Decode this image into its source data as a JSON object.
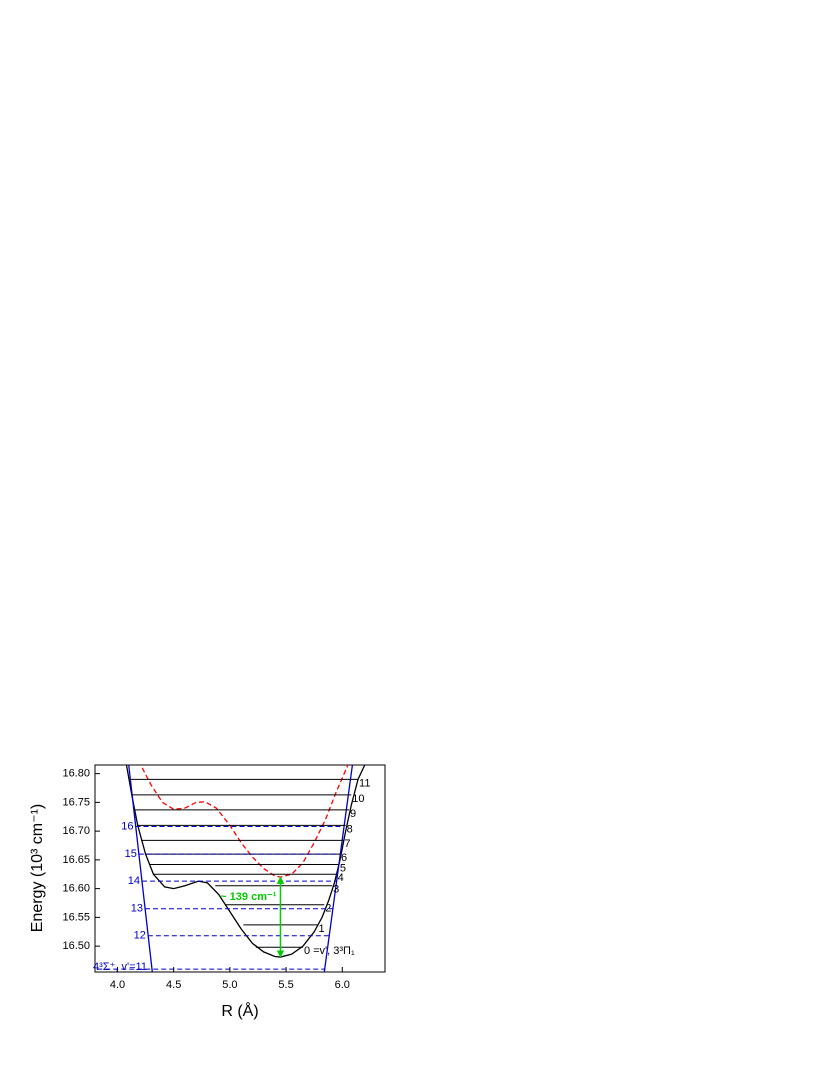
{
  "chart_data": {
    "type": "line",
    "xlabel": "R (Å)",
    "ylabel": "Energy (10³ cm⁻¹)",
    "xlim": [
      3.8,
      6.38
    ],
    "ylim": [
      16.455,
      16.815
    ],
    "xticks": [
      {
        "value": 4,
        "label": "4.0"
      },
      4.5,
      {
        "value": 5,
        "label": "5.0"
      },
      5.5,
      {
        "value": 6,
        "label": "6.0"
      }
    ],
    "yticks": [
      {
        "value": 16.5,
        "label": "16.50"
      },
      16.55,
      {
        "value": 16.6,
        "label": "16.60"
      },
      16.65,
      {
        "value": 16.7,
        "label": "16.70"
      },
      16.75,
      {
        "value": 16.8,
        "label": "16.80"
      }
    ],
    "series": [
      {
        "color": "#000000",
        "dash": "solid",
        "x": [
          4.08,
          4.13,
          4.18,
          4.25,
          4.32,
          4.42,
          4.5,
          4.6,
          4.72,
          4.8,
          4.9,
          5.0,
          5.1,
          5.2,
          5.3,
          5.4,
          5.45,
          5.55,
          5.65,
          5.75,
          5.82,
          5.88,
          5.93,
          5.98,
          6.03,
          6.08,
          6.14,
          6.2
        ],
        "values": [
          16.815,
          16.76,
          16.71,
          16.66,
          16.625,
          16.603,
          16.6,
          16.605,
          16.613,
          16.61,
          16.59,
          16.56,
          16.53,
          16.505,
          16.49,
          16.482,
          16.481,
          16.486,
          16.5,
          16.525,
          16.55,
          16.58,
          16.61,
          16.65,
          16.7,
          16.745,
          16.79,
          16.815
        ]
      },
      {
        "color": "#ff0000",
        "dash": "dashed",
        "x": [
          4.22,
          4.3,
          4.4,
          4.5,
          4.6,
          4.7,
          4.78,
          4.88,
          5.0,
          5.1,
          5.2,
          5.3,
          5.4,
          5.45,
          5.55,
          5.65,
          5.75,
          5.85,
          5.95,
          6.05
        ],
        "values": [
          16.81,
          16.78,
          16.75,
          16.738,
          16.74,
          16.75,
          16.751,
          16.74,
          16.71,
          16.68,
          16.655,
          16.635,
          16.622,
          16.62,
          16.625,
          16.645,
          16.68,
          16.72,
          16.77,
          16.815
        ]
      },
      {
        "color": "#0000cc",
        "dash": "solid",
        "x": [
          4.1,
          4.31
        ],
        "values": [
          16.815,
          16.455
        ]
      },
      {
        "color": "#0000cc",
        "dash": "solid",
        "x": [
          5.84,
          6.09
        ],
        "values": [
          16.455,
          16.815
        ]
      }
    ],
    "levels": [
      {
        "label": "0 =v', 3³Π₁",
        "value": 16.498,
        "xrange": [
          5.23,
          5.65
        ],
        "color": "#000000",
        "dash": "solid"
      },
      {
        "label": "1",
        "value": 16.537,
        "xrange": [
          5.12,
          5.78
        ],
        "color": "#000000",
        "dash": "solid"
      },
      {
        "label": "2",
        "value": 16.572,
        "xrange": [
          4.96,
          5.84
        ],
        "color": "#000000",
        "dash": "solid"
      },
      {
        "label": "3",
        "value": 16.605,
        "xrange": [
          4.87,
          5.91
        ],
        "color": "#000000",
        "dash": "solid"
      },
      {
        "label": "4",
        "value": 16.625,
        "xrange": [
          4.32,
          5.95
        ],
        "color": "#000000",
        "dash": "solid"
      },
      {
        "label": "5",
        "value": 16.642,
        "xrange": [
          4.28,
          5.97
        ],
        "color": "#000000",
        "dash": "solid"
      },
      {
        "label": "6",
        "value": 16.66,
        "xrange": [
          4.25,
          5.98
        ],
        "color": "#000000",
        "dash": "solid"
      },
      {
        "label": "7",
        "value": 16.684,
        "xrange": [
          4.21,
          6.01
        ],
        "color": "#000000",
        "dash": "solid"
      },
      {
        "label": "8",
        "value": 16.71,
        "xrange": [
          4.18,
          6.03
        ],
        "color": "#000000",
        "dash": "solid"
      },
      {
        "label": "9",
        "value": 16.737,
        "xrange": [
          4.155,
          6.06
        ],
        "color": "#000000",
        "dash": "solid"
      },
      {
        "label": "10",
        "value": 16.763,
        "xrange": [
          4.13,
          6.08
        ],
        "color": "#000000",
        "dash": "solid"
      },
      {
        "label": "11",
        "value": 16.79,
        "xrange": [
          4.105,
          6.14
        ],
        "color": "#000000",
        "dash": "solid"
      },
      {
        "label": "4³Σ⁺, v'=11",
        "value": 16.46,
        "xrange": [
          3.82,
          5.85
        ],
        "color": "#0000cc",
        "dash": "dashed"
      },
      {
        "label": "12",
        "value": 16.518,
        "xrange": [
          4.27,
          5.88
        ],
        "color": "#0000cc",
        "dash": "dashed"
      },
      {
        "label": "13",
        "value": 16.565,
        "xrange": [
          4.245,
          5.92
        ],
        "color": "#0000cc",
        "dash": "dashed"
      },
      {
        "label": "14",
        "value": 16.613,
        "xrange": [
          4.218,
          5.95
        ],
        "color": "#0000cc",
        "dash": "dashed"
      },
      {
        "label": "15",
        "value": 16.66,
        "xrange": [
          4.19,
          5.98
        ],
        "color": "#0000cc",
        "dash": "dashed"
      },
      {
        "label": "16",
        "value": 16.708,
        "xrange": [
          4.16,
          6.02
        ],
        "color": "#0000cc",
        "dash": "dashed"
      }
    ],
    "annotation": {
      "text": "~ 139 cm⁻¹",
      "x": 5.45,
      "from": 16.62,
      "to": 16.481,
      "color": "#00cc00"
    }
  }
}
